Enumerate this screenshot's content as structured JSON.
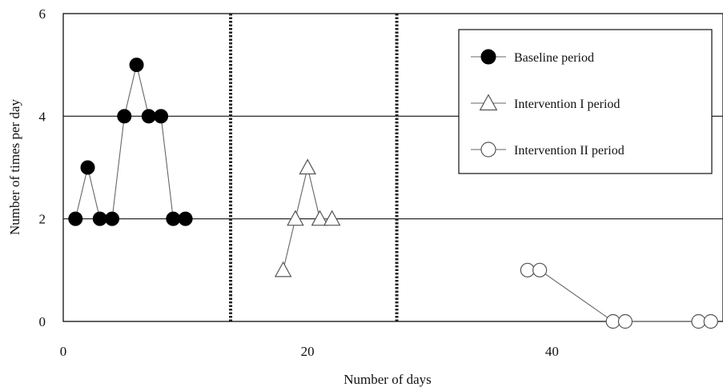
{
  "chart_data": {
    "type": "line",
    "xlabel": "Number of days",
    "ylabel": "Number of times per day",
    "xlim": [
      0,
      54
    ],
    "ylim": [
      0,
      6
    ],
    "x_ticks": [
      0,
      20,
      40
    ],
    "y_ticks": [
      0,
      2,
      4,
      6
    ],
    "horizontal_gridlines": [
      2,
      4
    ],
    "phase_dividers_x": [
      13.7,
      27.3
    ],
    "legend_position": "top-right",
    "series": [
      {
        "name": "Baseline period",
        "marker": "filled-circle",
        "x": [
          1,
          2,
          3,
          4,
          5,
          6,
          7,
          8,
          9,
          10
        ],
        "y": [
          2,
          3,
          2,
          2,
          4,
          5,
          4,
          4,
          2,
          2
        ]
      },
      {
        "name": "Intervention I period",
        "marker": "open-triangle",
        "x": [
          18,
          19,
          20,
          21,
          22
        ],
        "y": [
          1,
          2,
          3,
          2,
          2
        ]
      },
      {
        "name": "Intervention II period",
        "marker": "open-circle",
        "x": [
          38,
          39,
          45,
          46,
          52,
          53
        ],
        "y": [
          1,
          1,
          0,
          0,
          0,
          0
        ]
      }
    ]
  }
}
